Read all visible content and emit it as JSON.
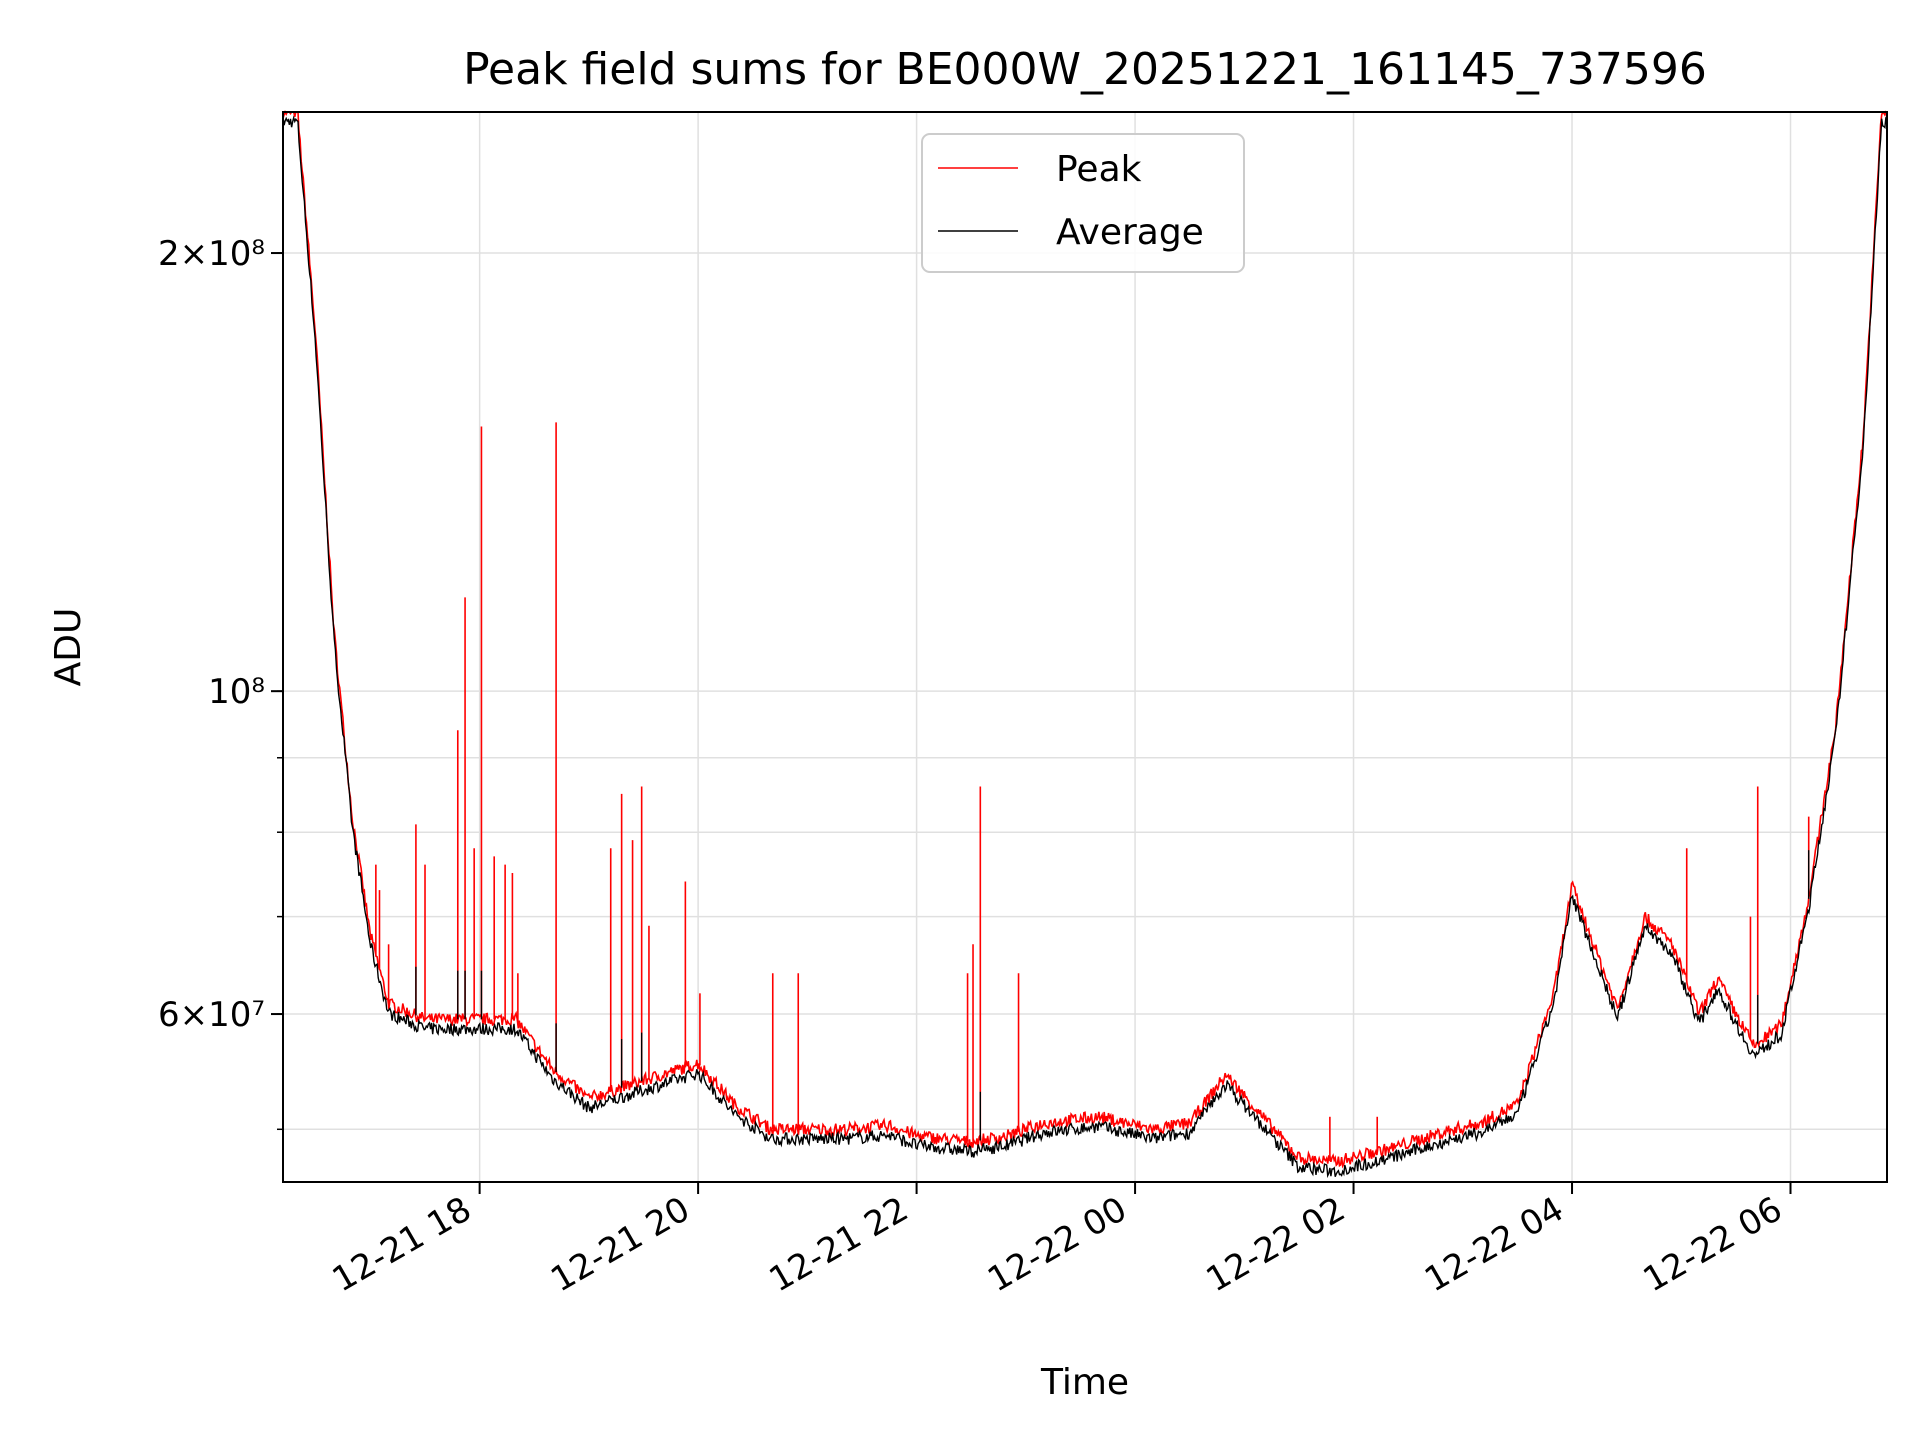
{
  "chart_data": {
    "type": "line",
    "title": "Peak field sums for BE000W_20251221_161145_737596",
    "xlabel": "Time",
    "ylabel": "ADU",
    "yscale": "log",
    "xlim": [
      "2025-12-21 16:12",
      "2025-12-22 06:53"
    ],
    "ylim": [
      46000000,
      250000000
    ],
    "grid": true,
    "legend_position": "upper center",
    "x_ticks": [
      "12-21 18",
      "12-21 20",
      "12-21 22",
      "12-22 00",
      "12-22 02",
      "12-22 04",
      "12-22 06"
    ],
    "y_tick_labels": [
      {
        "value": 200000000,
        "label": "2×10⁸"
      },
      {
        "value": 100000000,
        "label": "10⁸"
      },
      {
        "value": 60000000,
        "label": "6×10⁷"
      }
    ],
    "series": [
      {
        "name": "Peak",
        "color": "#ff0000",
        "baseline": [
          [
            "2025-12-21 16:12",
            250000000
          ],
          [
            "2025-12-21 16:20",
            250000000
          ],
          [
            "2025-12-21 16:30",
            175000000
          ],
          [
            "2025-12-21 16:40",
            110000000
          ],
          [
            "2025-12-21 16:50",
            82000000
          ],
          [
            "2025-12-21 17:00",
            68000000
          ],
          [
            "2025-12-21 17:10",
            61000000
          ],
          [
            "2025-12-21 17:30",
            59500000
          ],
          [
            "2025-12-21 18:00",
            59500000
          ],
          [
            "2025-12-21 18:20",
            59500000
          ],
          [
            "2025-12-21 18:40",
            55000000
          ],
          [
            "2025-12-21 19:00",
            52500000
          ],
          [
            "2025-12-21 19:20",
            53500000
          ],
          [
            "2025-12-21 19:40",
            54500000
          ],
          [
            "2025-12-21 20:00",
            55500000
          ],
          [
            "2025-12-21 20:20",
            52000000
          ],
          [
            "2025-12-21 20:40",
            50000000
          ],
          [
            "2025-12-21 21:00",
            50000000
          ],
          [
            "2025-12-21 21:20",
            50000000
          ],
          [
            "2025-12-21 21:45",
            50300000
          ],
          [
            "2025-12-21 22:00",
            49500000
          ],
          [
            "2025-12-21 22:30",
            49000000
          ],
          [
            "2025-12-21 22:50",
            49500000
          ],
          [
            "2025-12-21 23:10",
            50500000
          ],
          [
            "2025-12-21 23:40",
            51000000
          ],
          [
            "2025-12-22 00:10",
            50000000
          ],
          [
            "2025-12-22 00:30",
            50500000
          ],
          [
            "2025-12-22 00:50",
            54500000
          ],
          [
            "2025-12-22 01:10",
            51000000
          ],
          [
            "2025-12-22 01:30",
            47800000
          ],
          [
            "2025-12-22 01:50",
            47500000
          ],
          [
            "2025-12-22 02:20",
            48500000
          ],
          [
            "2025-12-22 02:50",
            49800000
          ],
          [
            "2025-12-22 03:10",
            50500000
          ],
          [
            "2025-12-22 03:30",
            52000000
          ],
          [
            "2025-12-22 03:50",
            62000000
          ],
          [
            "2025-12-22 04:00",
            73500000
          ],
          [
            "2025-12-22 04:10",
            68000000
          ],
          [
            "2025-12-22 04:25",
            60500000
          ],
          [
            "2025-12-22 04:40",
            70000000
          ],
          [
            "2025-12-22 04:55",
            67000000
          ],
          [
            "2025-12-22 05:10",
            60000000
          ],
          [
            "2025-12-22 05:20",
            63500000
          ],
          [
            "2025-12-22 05:30",
            60000000
          ],
          [
            "2025-12-22 05:40",
            57000000
          ],
          [
            "2025-12-22 05:55",
            59000000
          ],
          [
            "2025-12-22 06:10",
            72000000
          ],
          [
            "2025-12-22 06:25",
            95000000
          ],
          [
            "2025-12-22 06:40",
            150000000
          ],
          [
            "2025-12-22 06:50",
            250000000
          ],
          [
            "2025-12-22 06:53",
            250000000
          ]
        ],
        "spikes": [
          [
            "2025-12-21 17:03",
            76000000
          ],
          [
            "2025-12-21 17:05",
            73000000
          ],
          [
            "2025-12-21 17:10",
            67000000
          ],
          [
            "2025-12-21 17:25",
            81000000
          ],
          [
            "2025-12-21 17:30",
            76000000
          ],
          [
            "2025-12-21 17:48",
            94000000
          ],
          [
            "2025-12-21 17:52",
            116000000
          ],
          [
            "2025-12-21 17:57",
            78000000
          ],
          [
            "2025-12-21 18:01",
            152000000
          ],
          [
            "2025-12-21 18:08",
            77000000
          ],
          [
            "2025-12-21 18:14",
            76000000
          ],
          [
            "2025-12-21 18:18",
            75000000
          ],
          [
            "2025-12-21 18:21",
            64000000
          ],
          [
            "2025-12-21 18:42",
            153000000
          ],
          [
            "2025-12-21 19:12",
            78000000
          ],
          [
            "2025-12-21 19:18",
            85000000
          ],
          [
            "2025-12-21 19:24",
            79000000
          ],
          [
            "2025-12-21 19:29",
            86000000
          ],
          [
            "2025-12-21 19:33",
            69000000
          ],
          [
            "2025-12-21 19:53",
            74000000
          ],
          [
            "2025-12-21 20:01",
            62000000
          ],
          [
            "2025-12-21 20:41",
            64000000
          ],
          [
            "2025-12-21 20:55",
            64000000
          ],
          [
            "2025-12-21 22:28",
            64000000
          ],
          [
            "2025-12-21 22:31",
            67000000
          ],
          [
            "2025-12-21 22:35",
            86000000
          ],
          [
            "2025-12-21 22:56",
            64000000
          ],
          [
            "2025-12-22 01:47",
            51000000
          ],
          [
            "2025-12-22 02:13",
            51000000
          ],
          [
            "2025-12-22 05:03",
            78000000
          ],
          [
            "2025-12-22 05:38",
            70000000
          ],
          [
            "2025-12-22 05:42",
            86000000
          ],
          [
            "2025-12-22 06:10",
            82000000
          ]
        ]
      },
      {
        "name": "Average",
        "color": "#000000"
      }
    ]
  }
}
